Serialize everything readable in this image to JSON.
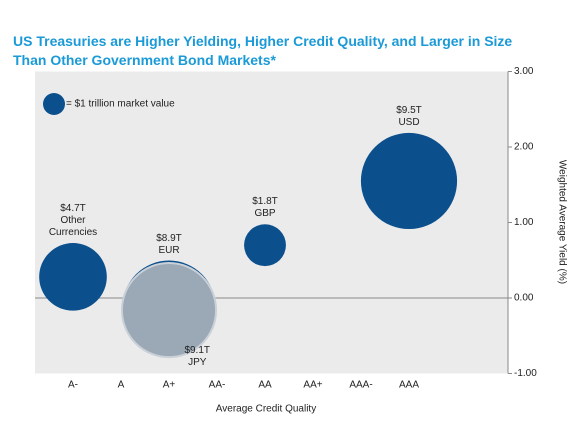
{
  "chart_data": {
    "type": "bubble",
    "title": "US Treasuries are Higher Yielding, Higher Credit Quality, and Larger in Size Than Other Government Bond Markets*",
    "legend_text": "= $1 trillion market value",
    "x_label": "Average Credit Quality",
    "y_label": "Weighted Average Yield (%)",
    "categories": [
      "A-",
      "A",
      "A+",
      "AA-",
      "AA",
      "AA+",
      "AAA-",
      "AAA"
    ],
    "ylim": [
      -1,
      3
    ],
    "yticks": [
      {
        "value": 3,
        "label": "3.00"
      },
      {
        "value": 2,
        "label": "2.00"
      },
      {
        "value": 1,
        "label": "1.00"
      },
      {
        "value": 0,
        "label": "0.00"
      },
      {
        "value": -1,
        "label": "-1.00"
      }
    ],
    "points": [
      {
        "name": "Other Currencies",
        "category": "A-",
        "y": 0.28,
        "size": 4.7,
        "size_label": "$4.7T",
        "color": "#0b4f8c",
        "label_position": "above"
      },
      {
        "name": "EUR",
        "category": "A+",
        "y": -0.12,
        "size": 8.9,
        "size_label": "$8.9T",
        "color": "#0b4f8c",
        "label_position": "above"
      },
      {
        "name": "JPY",
        "category": "A+",
        "y": -0.16,
        "size": 9.1,
        "size_label": "$9.1T",
        "color": "#9ba8b6",
        "label_position": "below-right"
      },
      {
        "name": "GBP",
        "category": "AA",
        "y": 0.7,
        "size": 1.8,
        "size_label": "$1.8T",
        "color": "#0b4f8c",
        "label_position": "above"
      },
      {
        "name": "USD",
        "category": "AAA",
        "y": 1.55,
        "size": 9.5,
        "size_label": "$9.5T",
        "color": "#0b4f8c",
        "label_position": "above"
      }
    ]
  }
}
